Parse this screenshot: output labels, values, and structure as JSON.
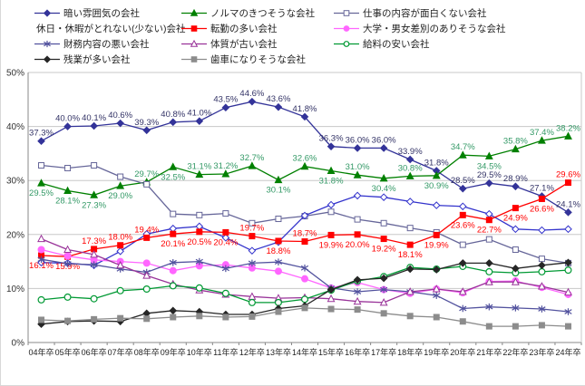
{
  "chart_data": {
    "type": "line",
    "title": "",
    "xlabel": "",
    "ylabel": "",
    "ylim": [
      0,
      50
    ],
    "y_ticks": [
      0,
      10,
      20,
      30,
      40,
      50
    ],
    "y_tick_labels": [
      "0%",
      "10%",
      "20%",
      "30%",
      "40%",
      "50%"
    ],
    "grid": true,
    "legend_position": "top",
    "categories": [
      "04年卒",
      "05年卒",
      "06年卒",
      "07年卒",
      "08年卒",
      "09年卒",
      "10年卒",
      "11年卒",
      "12年卒",
      "13年卒",
      "14年卒",
      "15年卒",
      "16年卒",
      "17年卒",
      "18年卒",
      "19年卒",
      "20年卒",
      "21年卒",
      "22年卒",
      "23年卒",
      "24年卒"
    ],
    "series": [
      {
        "name": "暗い雰囲気の会社",
        "color": "#333399",
        "label_color": "#333366",
        "marker": "diamond",
        "open": false,
        "labeled": true,
        "values": [
          37.3,
          40.0,
          40.1,
          40.6,
          39.3,
          40.8,
          41.0,
          43.5,
          44.6,
          43.6,
          41.8,
          36.3,
          36.0,
          36.0,
          33.9,
          31.8,
          28.5,
          29.5,
          28.9,
          27.1,
          24.1
        ],
        "label_pos": [
          "a",
          "a",
          "a",
          "a",
          "a",
          "a",
          "a",
          "a",
          "a",
          "a",
          "a",
          "a",
          "a",
          "a",
          "a",
          "a",
          "a",
          "a",
          "a",
          "a",
          "a"
        ]
      },
      {
        "name": "ノルマのきつそうな会社",
        "color": "#008000",
        "label_color": "#339966",
        "marker": "triangle",
        "open": false,
        "labeled": true,
        "values": [
          29.5,
          28.1,
          27.3,
          29.0,
          29.7,
          32.5,
          31.1,
          31.2,
          32.7,
          30.1,
          32.6,
          31.8,
          31.0,
          30.4,
          30.8,
          30.9,
          34.7,
          34.5,
          35.8,
          37.4,
          38.2
        ],
        "label_pos": [
          "b",
          "b",
          "b",
          "b",
          "a",
          "b",
          "a",
          "a",
          "a",
          "b",
          "a",
          "b",
          "a",
          "b",
          "a",
          "b",
          "a",
          "b",
          "a",
          "a",
          "a"
        ]
      },
      {
        "name": "仕事の内容が面白くない会社",
        "color": "#666699",
        "marker": "square",
        "open": true,
        "labeled": false,
        "values": [
          32.8,
          32.3,
          32.8,
          30.7,
          29.3,
          23.8,
          23.6,
          23.9,
          22.1,
          22.9,
          23.4,
          24.2,
          22.8,
          22.1,
          21.2,
          20.4,
          18.1,
          19.1,
          17.2,
          15.5,
          14.7
        ]
      },
      {
        "name": "休日・休暇がとれない(少ない)会社",
        "color": "#3333CC",
        "marker": "diamond",
        "open": true,
        "labeled": false,
        "values": [
          14.8,
          14.7,
          14.3,
          16.9,
          20.1,
          21.1,
          21.5,
          19.4,
          17.0,
          18.6,
          23.5,
          25.5,
          27.2,
          26.9,
          26.1,
          25.4,
          25.2,
          23.8,
          21.0,
          20.8,
          21.0
        ]
      },
      {
        "name": "転勤の多い会社",
        "color": "#FF0000",
        "label_color": "#FF0000",
        "marker": "square",
        "open": false,
        "labeled": true,
        "values": [
          16.1,
          15.9,
          17.3,
          18.0,
          19.4,
          20.1,
          20.5,
          20.4,
          19.7,
          18.8,
          18.7,
          19.9,
          20.0,
          19.2,
          18.1,
          19.9,
          23.6,
          22.7,
          24.9,
          26.6,
          29.6
        ],
        "label_pos": [
          "b",
          "b",
          "a",
          "a",
          "a",
          "b",
          "b",
          "b",
          "a",
          "b",
          "a",
          "b",
          "b",
          "b",
          "b",
          "b",
          "b",
          "b",
          "b",
          "b",
          "a"
        ]
      },
      {
        "name": "大学・男女差別のありそうな会社",
        "color": "#FF66FF",
        "marker": "circle",
        "open": false,
        "labeled": false,
        "values": [
          17.2,
          16.0,
          15.3,
          15.0,
          14.7,
          13.3,
          14.2,
          14.4,
          13.8,
          13.2,
          11.8,
          10.1,
          11.1,
          9.8,
          9.1,
          9.9,
          9.2,
          11.3,
          11.4,
          10.2,
          8.9
        ]
      },
      {
        "name": "財務内容の悪い会社",
        "color": "#52529E",
        "marker": "asterisk",
        "open": false,
        "labeled": false,
        "values": [
          15.4,
          14.6,
          14.4,
          13.6,
          13.0,
          14.8,
          15.0,
          13.7,
          14.7,
          14.9,
          13.8,
          10.1,
          9.4,
          9.8,
          9.4,
          8.7,
          6.3,
          6.6,
          6.4,
          6.2,
          5.7
        ]
      },
      {
        "name": "体質が古い会社",
        "color": "#993399",
        "marker": "triangle",
        "open": true,
        "labeled": false,
        "values": [
          19.2,
          17.2,
          16.3,
          14.3,
          12.4,
          10.8,
          9.7,
          8.9,
          8.5,
          8.2,
          8.3,
          8.1,
          7.6,
          7.4,
          9.4,
          9.9,
          9.4,
          11.2,
          11.2,
          10.4,
          9.3
        ]
      },
      {
        "name": "給料の安い会社",
        "color": "#009933",
        "marker": "circle",
        "open": true,
        "labeled": false,
        "values": [
          7.9,
          8.4,
          8.1,
          9.6,
          9.9,
          10.5,
          10.1,
          9.1,
          7.4,
          7.4,
          8.0,
          9.7,
          11.4,
          12.2,
          13.9,
          13.6,
          14.1,
          13.1,
          12.9,
          13.1,
          13.4
        ]
      },
      {
        "name": "残業が多い会社",
        "color": "#262626",
        "marker": "diamond",
        "open": false,
        "labeled": false,
        "values": [
          3.4,
          3.9,
          4.0,
          3.9,
          5.4,
          5.9,
          5.7,
          5.2,
          5.2,
          6.3,
          6.8,
          9.8,
          11.6,
          11.9,
          13.6,
          13.5,
          14.7,
          14.7,
          13.7,
          14.3,
          14.8
        ]
      },
      {
        "name": "歯車になりそうな会社",
        "color": "#8C8C8C",
        "marker": "square",
        "open": false,
        "labeled": false,
        "values": [
          4.2,
          4.0,
          4.3,
          4.5,
          4.4,
          4.7,
          4.9,
          4.7,
          4.8,
          5.7,
          6.4,
          6.2,
          6.1,
          5.4,
          4.9,
          4.7,
          3.9,
          3.0,
          3.0,
          3.2,
          3.0
        ]
      }
    ]
  }
}
